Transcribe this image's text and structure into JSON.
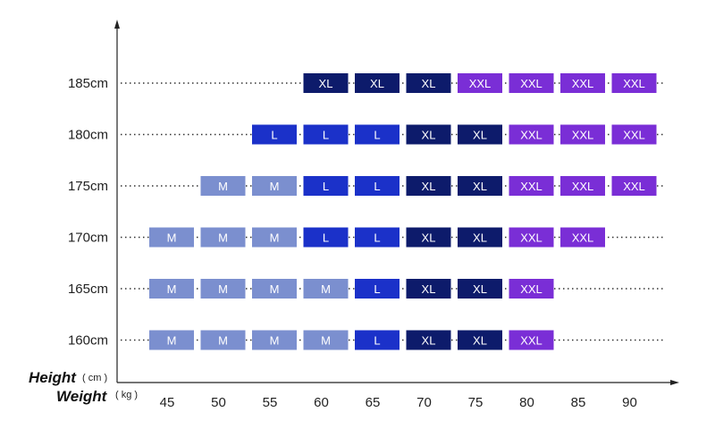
{
  "chart_data": {
    "type": "table",
    "title": "",
    "ylabel": "Height",
    "ylabel_unit": "( cm )",
    "xlabel": "Weight",
    "xlabel_unit": "( kg )",
    "x": [
      "45",
      "50",
      "55",
      "60",
      "65",
      "70",
      "75",
      "80",
      "85",
      "90"
    ],
    "rows": [
      {
        "label": "185cm",
        "cells": [
          "",
          "",
          "",
          "XL",
          "XL",
          "XL",
          "XXL",
          "XXL",
          "XXL",
          "XXL"
        ]
      },
      {
        "label": "180cm",
        "cells": [
          "",
          "",
          "L",
          "L",
          "L",
          "XL",
          "XL",
          "XXL",
          "XXL",
          "XXL"
        ]
      },
      {
        "label": "175cm",
        "cells": [
          "",
          "M",
          "M",
          "L",
          "L",
          "XL",
          "XL",
          "XXL",
          "XXL",
          "XXL"
        ]
      },
      {
        "label": "170cm",
        "cells": [
          "M",
          "M",
          "M",
          "L",
          "L",
          "XL",
          "XL",
          "XXL",
          "XXL",
          ""
        ]
      },
      {
        "label": "165cm",
        "cells": [
          "M",
          "M",
          "M",
          "M",
          "L",
          "XL",
          "XL",
          "XXL",
          "",
          ""
        ]
      },
      {
        "label": "160cm",
        "cells": [
          "M",
          "M",
          "M",
          "M",
          "L",
          "XL",
          "XL",
          "XXL",
          "",
          ""
        ]
      }
    ],
    "size_colors": {
      "M": "#7b8fcf",
      "L": "#1b31c9",
      "XL": "#0d1b6b",
      "XXL": "#7a2ed6"
    },
    "grid": false
  }
}
